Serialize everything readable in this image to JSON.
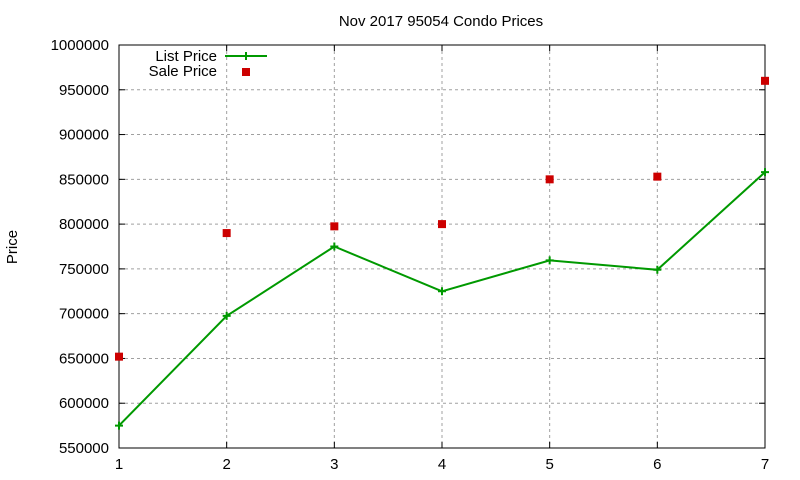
{
  "chart_data": {
    "type": "line",
    "title": "Nov 2017 95054 Condo Prices",
    "xlabel": "",
    "ylabel": "Price",
    "x": [
      1,
      2,
      3,
      4,
      5,
      6,
      7
    ],
    "xlim": [
      1,
      7
    ],
    "ylim": [
      550000,
      1000000
    ],
    "yticks": [
      550000,
      600000,
      650000,
      700000,
      750000,
      800000,
      850000,
      900000,
      950000,
      1000000
    ],
    "xticks": [
      1,
      2,
      3,
      4,
      5,
      6,
      7
    ],
    "grid": true,
    "legend_position": "top-left",
    "series": [
      {
        "name": "List Price",
        "style": "linespoints",
        "color": "#009900",
        "marker": "plus",
        "values": [
          575000,
          697500,
          775000,
          725000,
          759500,
          749000,
          858000
        ]
      },
      {
        "name": "Sale Price",
        "style": "points",
        "color": "#cc0000",
        "marker": "square",
        "values": [
          652000,
          790000,
          797500,
          800000,
          850000,
          853000,
          960000
        ]
      }
    ]
  }
}
